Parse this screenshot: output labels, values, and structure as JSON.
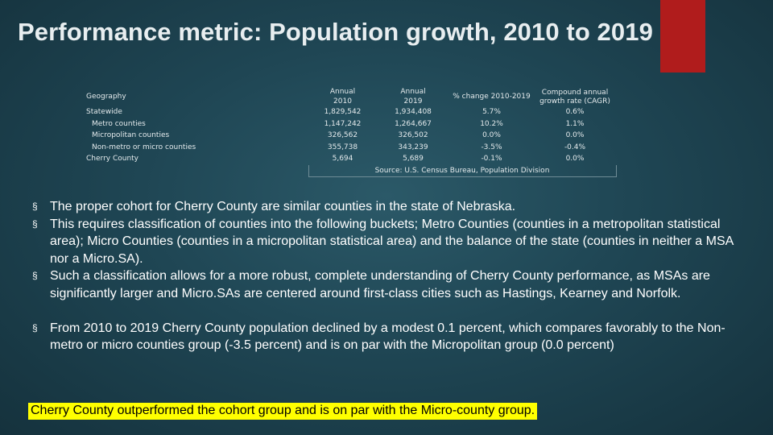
{
  "slide": {
    "title": "Performance metric: Population growth, 2010 to 2019",
    "accent_color": "#b01c1c"
  },
  "table": {
    "headers": {
      "geography": "Geography",
      "annual_2010": [
        "Annual",
        "2010"
      ],
      "annual_2019": [
        "Annual",
        "2019"
      ],
      "pct_change": "% change 2010-2019",
      "cagr": [
        "Compound annual",
        "growth rate (CAGR)"
      ]
    },
    "rows": [
      {
        "label": "Statewide",
        "y2010": "1,829,542",
        "y2019": "1,934,408",
        "pct": "5.7%",
        "cagr": "0.6%"
      },
      {
        "label": "Metro counties",
        "y2010": "1,147,242",
        "y2019": "1,264,667",
        "pct": "10.2%",
        "cagr": "1.1%"
      },
      {
        "label": "Micropolitan counties",
        "y2010": "326,562",
        "y2019": "326,502",
        "pct": "0.0%",
        "cagr": "0.0%"
      },
      {
        "label": "Non-metro or micro counties",
        "y2010": "355,738",
        "y2019": "343,239",
        "pct": "-3.5%",
        "cagr": "-0.4%"
      },
      {
        "label": "Cherry County",
        "y2010": "5,694",
        "y2019": "5,689",
        "pct": "-0.1%",
        "cagr": "0.0%"
      }
    ],
    "source": "Source: U.S. Census Bureau, Population Division"
  },
  "bullets": [
    "The proper cohort for Cherry County are similar counties in the state of Nebraska.",
    "This requires classification of counties into the following buckets; Metro Counties (counties in a metropolitan statistical area); Micro Counties (counties in a micropolitan statistical area) and the balance of the state (counties in neither a MSA nor a Micro.SA).",
    "Such a classification allows for a more robust, complete understanding of Cherry County performance, as MSAs are significantly larger and Micro.SAs are centered around first-class cities such as Hastings, Kearney and Norfolk.",
    "From 2010 to 2019 Cherry County population declined by a modest 0.1 percent, which compares favorably to the Non-metro or micro counties group (-3.5 percent) and is on par with the Micropolitan group (0.0 percent)"
  ],
  "bullet_marker": "§",
  "conclusion": "Cherry County outperformed the cohort group and is on par with the Micro-county group."
}
